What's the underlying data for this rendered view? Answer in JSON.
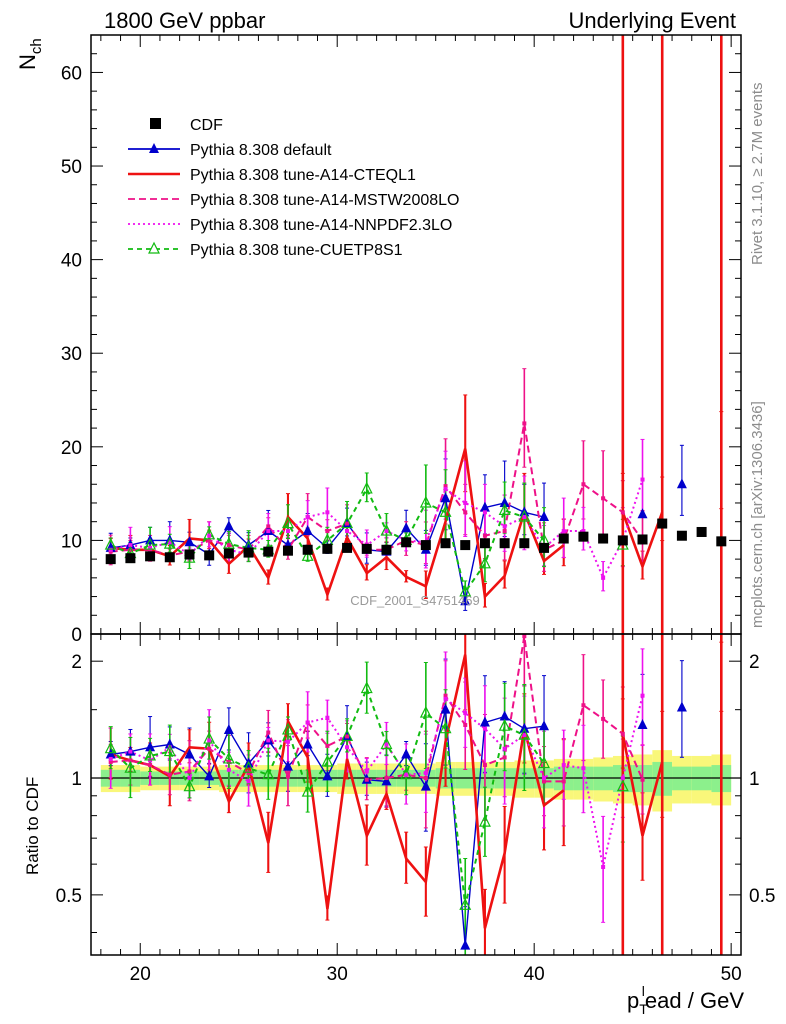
{
  "header": {
    "left_title": "1800 GeV ppbar",
    "right_title": "Underlying Event"
  },
  "side_labels": {
    "rivet": "Rivet 3.1.10, ≥ 2.7M events",
    "mcplots": "mcplots.cern.ch [arXiv:1306.3436]"
  },
  "watermark": "CDF_2001_S4751469",
  "chart_data": [
    {
      "type": "scatter",
      "panel": "main",
      "ylabel_main": "N",
      "ylabel_sub": "ch",
      "xlim": [
        17.5,
        50.5
      ],
      "ylim": [
        0,
        64
      ],
      "yticks": [
        0,
        10,
        20,
        30,
        40,
        50,
        60
      ],
      "ytick_labels": [
        "0",
        "10",
        "20",
        "30",
        "40",
        "50",
        "60"
      ],
      "x": [
        18.5,
        19.5,
        20.5,
        21.5,
        22.5,
        23.5,
        24.5,
        25.5,
        26.5,
        27.5,
        28.5,
        29.5,
        30.5,
        31.5,
        32.5,
        33.5,
        34.5,
        35.5,
        36.5,
        37.5,
        38.5,
        39.5,
        40.5,
        41.5,
        42.5,
        43.5,
        44.5,
        45.5,
        46.5,
        47.5,
        48.5,
        49.5
      ],
      "legend": [
        {
          "name": "CDF",
          "color": "#000000",
          "style": "square"
        },
        {
          "name": "Pythia 8.308 default",
          "color": "#0000cc",
          "style": "line-triangle"
        },
        {
          "name": "Pythia 8.308 tune-A14-CTEQL1",
          "color": "#ee1111",
          "style": "line"
        },
        {
          "name": "Pythia 8.308 tune-A14-MSTW2008LO",
          "color": "#ee1188",
          "style": "dashed"
        },
        {
          "name": "Pythia 8.308 tune-A14-NNPDF2.3LO",
          "color": "#ee11ee",
          "style": "dotted"
        },
        {
          "name": "Pythia 8.308 tune-CUETP8S1",
          "color": "#11bb11",
          "style": "dashed-open-triangle"
        }
      ],
      "series": [
        {
          "name": "CDF",
          "values": [
            8.0,
            8.1,
            8.3,
            8.2,
            8.5,
            8.4,
            8.6,
            8.7,
            8.8,
            8.9,
            9.0,
            9.1,
            9.2,
            9.1,
            9.0,
            9.8,
            9.5,
            9.7,
            9.5,
            9.7,
            9.7,
            9.7,
            9.2,
            10.2,
            10.4,
            10.2,
            10.0,
            10.1,
            11.8,
            10.5,
            10.9,
            9.9
          ]
        },
        {
          "name": "Pythia 8.308 default",
          "values": [
            9.2,
            9.5,
            10.0,
            10.0,
            9.8,
            8.5,
            11.5,
            9.5,
            11.0,
            9.5,
            11.0,
            9.2,
            11.8,
            9.0,
            8.8,
            11.3,
            9.0,
            14.5,
            3.5,
            13.5,
            14.0,
            13.0,
            12.5,
            null,
            null,
            null,
            null,
            12.8,
            null,
            16.0,
            null,
            null
          ]
        },
        {
          "name": "Pythia 8.308 tune-A14-CTEQL1",
          "values": [
            9.2,
            9.0,
            9.0,
            8.3,
            10.2,
            10.0,
            7.5,
            9.4,
            6.0,
            12.5,
            10.2,
            4.2,
            10.3,
            6.5,
            8.2,
            6.1,
            5.1,
            12.0,
            19.8,
            4.0,
            6.2,
            13.0,
            7.8,
            9.5,
            null,
            null,
            13.0,
            7.2,
            13.0,
            null,
            null,
            18.0
          ]
        },
        {
          "name": "Pythia 8.308 tune-A14-MSTW2008LO",
          "values": [
            8.8,
            9.0,
            9.0,
            8.4,
            8.8,
            10.0,
            9.5,
            9.0,
            11.5,
            9.0,
            12.5,
            11.0,
            11.8,
            9.0,
            9.0,
            10.0,
            9.5,
            15.8,
            13.0,
            10.5,
            11.0,
            22.5,
            9.0,
            10.0,
            16.0,
            14.5,
            13.0,
            10.0,
            null,
            null,
            null,
            null
          ]
        },
        {
          "name": "Pythia 8.308 tune-A14-NNPDF2.3LO",
          "values": [
            9.0,
            9.5,
            9.2,
            9.8,
            8.5,
            10.5,
            9.0,
            8.5,
            11.0,
            11.0,
            12.5,
            13.0,
            11.0,
            9.5,
            11.0,
            10.0,
            9.8,
            15.5,
            14.0,
            13.0,
            11.5,
            12.5,
            9.2,
            11.0,
            11.0,
            6.0,
            10.0,
            16.5,
            null,
            null,
            null,
            null
          ]
        },
        {
          "name": "Pythia 8.308 tune-CUETP8S1",
          "values": [
            9.5,
            8.6,
            9.5,
            9.6,
            8.1,
            10.6,
            9.6,
            9.2,
            9.0,
            11.8,
            8.3,
            10.0,
            11.8,
            15.5,
            11.0,
            10.0,
            14.0,
            13.0,
            4.5,
            7.5,
            13.2,
            12.5,
            10.0,
            null,
            null,
            null,
            9.5,
            null,
            null,
            null,
            null,
            null
          ]
        }
      ]
    },
    {
      "type": "line",
      "panel": "ratio",
      "ylabel": "Ratio to CDF",
      "xlabel": "p",
      "xlabel_sub": "T",
      "xlabel_sup": "l",
      "xlabel_rest": "ead / GeV",
      "xlim": [
        17.5,
        50.5
      ],
      "ylim": [
        0.35,
        2.35
      ],
      "yticks": [
        0.5,
        1,
        2
      ],
      "ytick_labels": [
        "0.5",
        "1",
        "2"
      ],
      "xticks": [
        20,
        30,
        40,
        50
      ],
      "xtick_labels": [
        "20",
        "30",
        "40",
        "50"
      ],
      "x": [
        18.5,
        19.5,
        20.5,
        21.5,
        22.5,
        23.5,
        24.5,
        25.5,
        26.5,
        27.5,
        28.5,
        29.5,
        30.5,
        31.5,
        32.5,
        33.5,
        34.5,
        35.5,
        36.5,
        37.5,
        38.5,
        39.5,
        40.5,
        41.5,
        42.5,
        43.5,
        44.5,
        45.5,
        46.5,
        47.5,
        48.5,
        49.5
      ],
      "band_inner": [
        0.05,
        0.05,
        0.04,
        0.04,
        0.04,
        0.04,
        0.05,
        0.05,
        0.05,
        0.05,
        0.05,
        0.05,
        0.05,
        0.05,
        0.05,
        0.05,
        0.05,
        0.06,
        0.06,
        0.06,
        0.06,
        0.06,
        0.06,
        0.07,
        0.07,
        0.07,
        0.08,
        0.08,
        0.1,
        0.07,
        0.07,
        0.08
      ],
      "band_outer": [
        0.08,
        0.08,
        0.07,
        0.07,
        0.07,
        0.07,
        0.08,
        0.08,
        0.08,
        0.08,
        0.08,
        0.08,
        0.09,
        0.09,
        0.09,
        0.09,
        0.09,
        0.1,
        0.1,
        0.1,
        0.1,
        0.11,
        0.11,
        0.12,
        0.12,
        0.13,
        0.14,
        0.15,
        0.18,
        0.14,
        0.14,
        0.15
      ],
      "series": [
        {
          "name": "Pythia 8.308 default",
          "values": [
            1.15,
            1.17,
            1.2,
            1.22,
            1.15,
            1.01,
            1.33,
            1.09,
            1.25,
            1.07,
            1.22,
            1.01,
            1.28,
            0.99,
            0.98,
            1.15,
            0.95,
            1.5,
            0.37,
            1.39,
            1.44,
            1.34,
            1.36,
            null,
            null,
            null,
            null,
            1.37,
            null,
            1.52,
            null,
            null
          ]
        },
        {
          "name": "Pythia 8.308 tune-A14-CTEQL1",
          "values": [
            1.15,
            1.11,
            1.08,
            1.01,
            1.2,
            1.19,
            0.87,
            1.08,
            0.68,
            1.4,
            1.13,
            0.46,
            1.12,
            0.71,
            0.91,
            0.62,
            0.54,
            1.24,
            2.08,
            0.41,
            0.64,
            1.34,
            0.85,
            0.93,
            null,
            null,
            1.3,
            0.71,
            1.1,
            null,
            null,
            1.82
          ]
        },
        {
          "name": "Pythia 8.308 tune-A14-MSTW2008LO",
          "values": [
            1.1,
            1.11,
            1.08,
            1.02,
            1.04,
            1.19,
            1.1,
            1.03,
            1.31,
            1.01,
            1.39,
            1.21,
            1.28,
            0.99,
            1.0,
            1.02,
            1.0,
            1.63,
            1.37,
            1.08,
            1.13,
            2.32,
            0.98,
            0.98,
            1.54,
            1.42,
            1.3,
            0.99,
            null,
            null,
            null,
            null
          ]
        },
        {
          "name": "Pythia 8.308 tune-A14-NNPDF2.3LO",
          "values": [
            1.12,
            1.17,
            1.11,
            1.2,
            1.0,
            1.25,
            1.05,
            0.98,
            1.25,
            1.24,
            1.39,
            1.43,
            1.2,
            1.04,
            1.22,
            1.02,
            1.03,
            1.6,
            1.47,
            1.34,
            1.19,
            1.29,
            1.0,
            1.08,
            1.06,
            0.59,
            1.0,
            1.63,
            null,
            null,
            null,
            null
          ]
        },
        {
          "name": "Pythia 8.308 tune-CUETP8S1",
          "values": [
            1.19,
            1.06,
            1.14,
            1.17,
            0.95,
            1.26,
            1.12,
            1.06,
            1.02,
            1.33,
            0.92,
            1.1,
            1.28,
            1.7,
            1.22,
            1.02,
            1.47,
            1.34,
            0.47,
            0.77,
            1.36,
            1.29,
            1.09,
            null,
            null,
            null,
            0.95,
            null,
            null,
            null,
            null,
            null
          ]
        }
      ]
    }
  ]
}
